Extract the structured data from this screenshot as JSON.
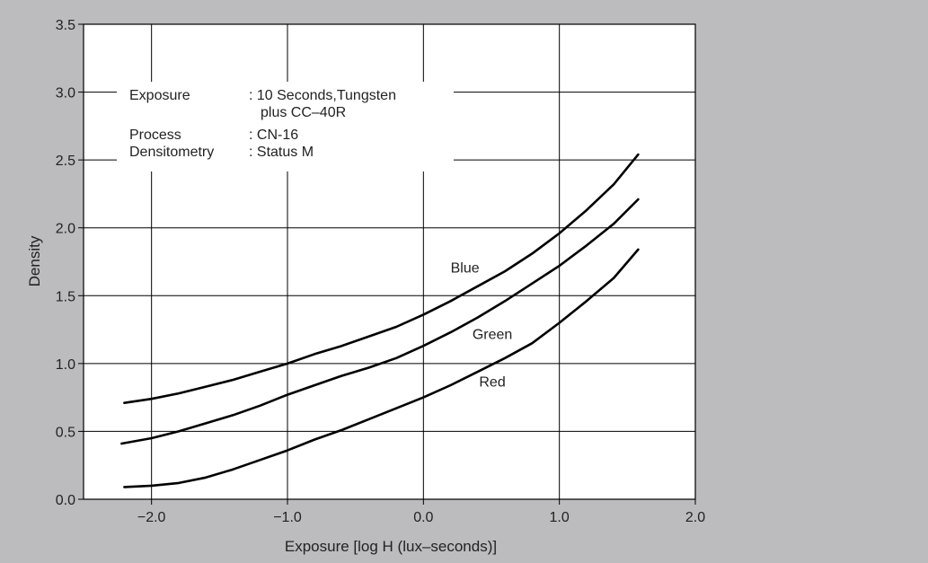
{
  "colors": {
    "border": "#bcbcbe",
    "plot_background": "#ffffff",
    "grid": "#000000",
    "curve": "#000000",
    "text": "#222222"
  },
  "chart_data": {
    "type": "line",
    "title": "",
    "xlabel": "Exposure [log H (lux–seconds)]",
    "ylabel": "Density",
    "xlim": [
      -2.5,
      2.0
    ],
    "ylim": [
      0.0,
      3.5
    ],
    "grid": true,
    "x_ticks": [
      -2.0,
      -1.0,
      0.0,
      1.0,
      2.0
    ],
    "x_tick_labels": [
      "−2.0",
      "−1.0",
      "0.0",
      "1.0",
      "2.0"
    ],
    "y_ticks": [
      0.0,
      0.5,
      1.0,
      1.5,
      2.0,
      2.5,
      3.0,
      3.5
    ],
    "y_tick_labels": [
      "0.0",
      "0.5",
      "1.0",
      "1.5",
      "2.0",
      "2.5",
      "3.0",
      "3.5"
    ],
    "series": [
      {
        "name": "Blue",
        "label_at": [
          0.2,
          1.67
        ],
        "x": [
          -2.2,
          -2.0,
          -1.8,
          -1.6,
          -1.4,
          -1.2,
          -1.0,
          -0.8,
          -0.6,
          -0.4,
          -0.2,
          0.0,
          0.2,
          0.4,
          0.6,
          0.8,
          1.0,
          1.2,
          1.4,
          1.58
        ],
        "y": [
          0.71,
          0.74,
          0.78,
          0.83,
          0.88,
          0.94,
          1.0,
          1.07,
          1.13,
          1.2,
          1.27,
          1.36,
          1.46,
          1.57,
          1.68,
          1.81,
          1.96,
          2.13,
          2.32,
          2.54
        ]
      },
      {
        "name": "Green",
        "label_at": [
          0.36,
          1.18
        ],
        "x": [
          -2.22,
          -2.0,
          -1.8,
          -1.6,
          -1.4,
          -1.2,
          -1.0,
          -0.8,
          -0.6,
          -0.4,
          -0.2,
          0.0,
          0.2,
          0.4,
          0.6,
          0.8,
          1.0,
          1.2,
          1.4,
          1.58
        ],
        "y": [
          0.41,
          0.45,
          0.5,
          0.56,
          0.62,
          0.69,
          0.77,
          0.84,
          0.91,
          0.97,
          1.04,
          1.13,
          1.23,
          1.34,
          1.46,
          1.59,
          1.72,
          1.87,
          2.03,
          2.21
        ]
      },
      {
        "name": "Red",
        "label_at": [
          0.41,
          0.83
        ],
        "x": [
          -2.2,
          -2.0,
          -1.8,
          -1.6,
          -1.4,
          -1.2,
          -1.0,
          -0.8,
          -0.6,
          -0.4,
          -0.2,
          0.0,
          0.2,
          0.4,
          0.6,
          0.8,
          1.0,
          1.2,
          1.4,
          1.58
        ],
        "y": [
          0.09,
          0.1,
          0.12,
          0.16,
          0.22,
          0.29,
          0.36,
          0.44,
          0.51,
          0.59,
          0.67,
          0.75,
          0.84,
          0.94,
          1.04,
          1.15,
          1.3,
          1.46,
          1.63,
          1.84
        ]
      }
    ],
    "annotations": {
      "lines": [
        {
          "label": "Exposure",
          "value": ": 10 Seconds,Tungsten"
        },
        {
          "label": "",
          "value": "plus CC–40R"
        },
        {
          "label": "Process",
          "value": ": CN-16"
        },
        {
          "label": "Densitometry",
          "value": ": Status M"
        }
      ]
    }
  }
}
